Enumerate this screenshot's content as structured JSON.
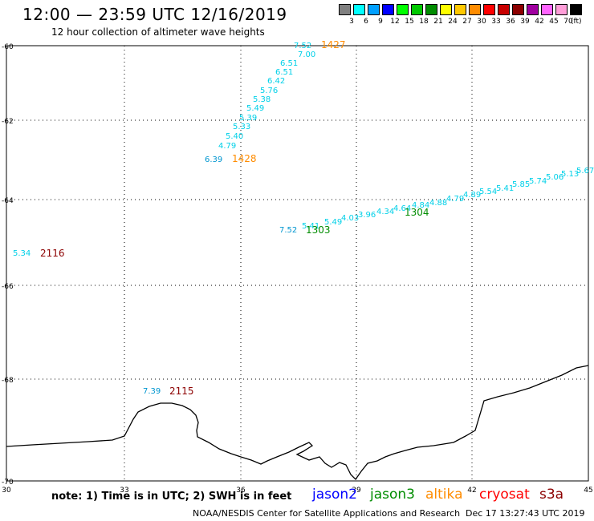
{
  "header": {
    "title": "12:00 — 23:59 UTC 12/16/2019",
    "subtitle": "12 hour collection of altimeter wave heights"
  },
  "legend": {
    "unit": "(ft)",
    "bins": [
      {
        "label": "3",
        "color": "#808080"
      },
      {
        "label": "6",
        "color": "#00ffff"
      },
      {
        "label": "9",
        "color": "#00a0ff"
      },
      {
        "label": "12",
        "color": "#0000ff"
      },
      {
        "label": "15",
        "color": "#00ff00"
      },
      {
        "label": "18",
        "color": "#00c800"
      },
      {
        "label": "21",
        "color": "#008c00"
      },
      {
        "label": "24",
        "color": "#ffff00"
      },
      {
        "label": "27",
        "color": "#ffc800"
      },
      {
        "label": "30",
        "color": "#ff8c00"
      },
      {
        "label": "33",
        "color": "#ff0000"
      },
      {
        "label": "36",
        "color": "#c80000"
      },
      {
        "label": "39",
        "color": "#8c0000"
      },
      {
        "label": "42",
        "color": "#a000a0"
      },
      {
        "label": "45",
        "color": "#ff64ff"
      },
      {
        "label": "70",
        "color": "#ff9ed8"
      },
      {
        "label": "",
        "color": "#000000"
      }
    ]
  },
  "axes": {
    "lat_labels": [
      "-60",
      "-62",
      "-64",
      "-66",
      "-68",
      "-70"
    ],
    "lon_labels": [
      "30",
      "33",
      "36",
      "39",
      "42",
      "45"
    ]
  },
  "tracks": [
    {
      "label_color": "#ff8c00",
      "pass_labels": [
        {
          "text": "1427"
        },
        {
          "text": "1428"
        }
      ],
      "points": [
        {
          "value": "7.52",
          "color": "#00d0e8"
        },
        {
          "value": "7.00",
          "color": "#00d0e8"
        },
        {
          "value": "6.51",
          "color": "#00d0e8"
        },
        {
          "value": "6.51",
          "color": "#00d0e8"
        },
        {
          "value": "6.42",
          "color": "#00d0e8"
        },
        {
          "value": "5.76",
          "color": "#00d0e8"
        },
        {
          "value": "5.38",
          "color": "#00d0e8"
        },
        {
          "value": "5.49",
          "color": "#00d0e8"
        },
        {
          "value": "5.39",
          "color": "#00d0e8"
        },
        {
          "value": "5.33",
          "color": "#00d0e8"
        },
        {
          "value": "5.40",
          "color": "#00d0e8"
        },
        {
          "value": "4.79",
          "color": "#00d0e8"
        },
        {
          "value": "6.39",
          "color": "#0096d0"
        }
      ]
    },
    {
      "label_color": "#008c00",
      "pass_labels": [
        {
          "text": "1303"
        },
        {
          "text": "1304"
        }
      ],
      "points": [
        {
          "value": "7.52",
          "color": "#0096d0"
        },
        {
          "value": "5.41",
          "color": "#00d0e8"
        },
        {
          "value": "5.49",
          "color": "#00d0e8"
        },
        {
          "value": "4.03",
          "color": "#00d0e8"
        },
        {
          "value": "3.96",
          "color": "#00d0e8"
        },
        {
          "value": "4.34",
          "color": "#00d0e8"
        },
        {
          "value": "4.64",
          "color": "#00d0e8"
        },
        {
          "value": "4.84",
          "color": "#00d0e8"
        },
        {
          "value": "4.88",
          "color": "#00d0e8"
        },
        {
          "value": "4.79",
          "color": "#00d0e8"
        },
        {
          "value": "4.89",
          "color": "#00d0e8"
        },
        {
          "value": "5.54",
          "color": "#00d0e8"
        },
        {
          "value": "5.41",
          "color": "#00d0e8"
        },
        {
          "value": "5.85",
          "color": "#00d0e8"
        },
        {
          "value": "5.74",
          "color": "#00d0e8"
        },
        {
          "value": "5.06",
          "color": "#00d0e8"
        },
        {
          "value": "5.13",
          "color": "#00d0e8"
        },
        {
          "value": "5.67",
          "color": "#00d0e8"
        }
      ]
    },
    {
      "label_color": "#8c0000",
      "pass_labels": [
        {
          "text": "2116"
        }
      ],
      "points": [
        {
          "value": "5.34",
          "color": "#00d0e8"
        }
      ]
    },
    {
      "label_color": "#8c0000",
      "pass_labels": [
        {
          "text": "2115"
        }
      ],
      "points": [
        {
          "value": "7.39",
          "color": "#0096d0"
        }
      ]
    }
  ],
  "footer": {
    "note": "note: 1) Time is in UTC; 2) SWH is in feet",
    "satellites": [
      {
        "name": "jason2",
        "color": "#0000ff"
      },
      {
        "name": "jason3",
        "color": "#008c00"
      },
      {
        "name": "altika",
        "color": "#ff8c00"
      },
      {
        "name": "cryosat",
        "color": "#ff0000"
      },
      {
        "name": "s3a",
        "color": "#8c0000"
      }
    ],
    "credit": "NOAA/NESDIS Center for Satellite Applications and Research",
    "timestamp": "Dec 17 13:27:43 UTC 2019"
  }
}
